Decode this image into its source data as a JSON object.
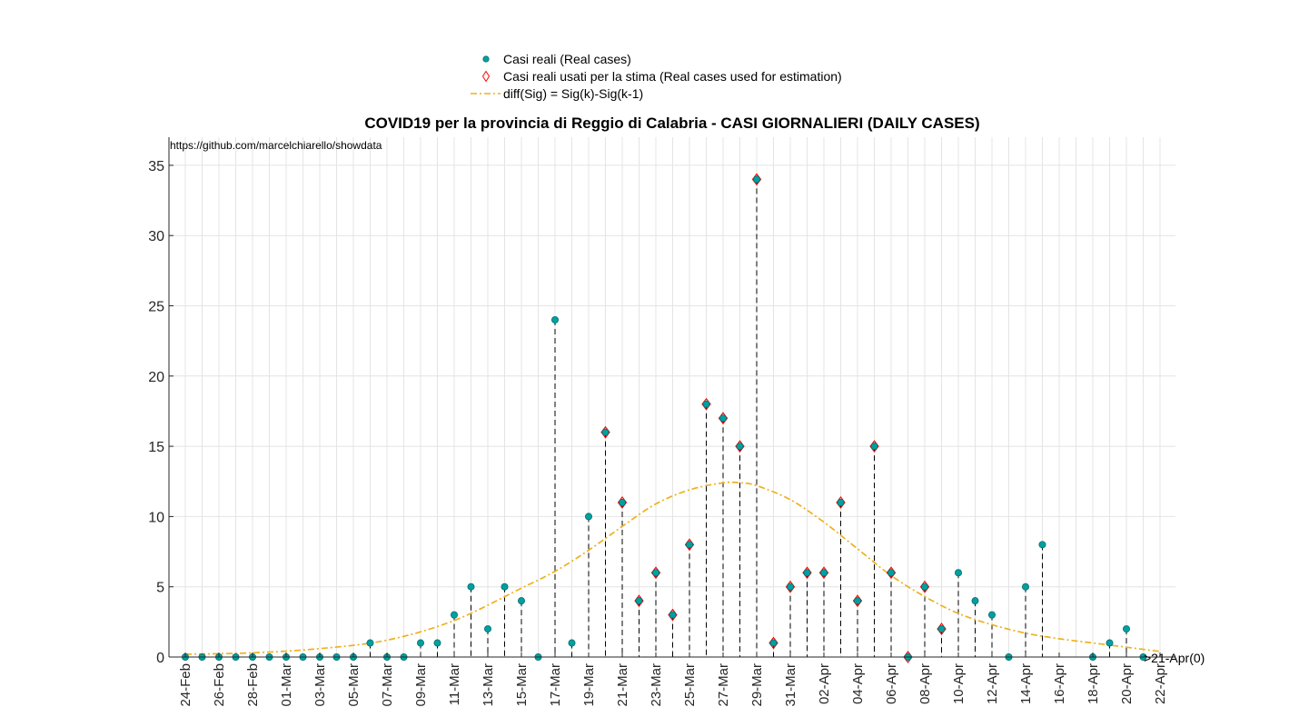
{
  "chart_data": {
    "type": "scatter",
    "title": "COVID19 per la provincia di Reggio di Calabria - CASI GIORNALIERI (DAILY CASES)",
    "source_note": "https://github.com/marcelchiarello/showdata",
    "end_annotation": ">21-Apr(0)",
    "xlabel": "",
    "ylabel": "",
    "ylim": [
      0,
      37
    ],
    "yticks": [
      0,
      5,
      10,
      15,
      20,
      25,
      30,
      35
    ],
    "grid": true,
    "legend_position": "top-center",
    "x": [
      "24-Feb",
      "25-Feb",
      "26-Feb",
      "27-Feb",
      "28-Feb",
      "29-Feb",
      "01-Mar",
      "02-Mar",
      "03-Mar",
      "04-Mar",
      "05-Mar",
      "06-Mar",
      "07-Mar",
      "08-Mar",
      "09-Mar",
      "10-Mar",
      "11-Mar",
      "12-Mar",
      "13-Mar",
      "14-Mar",
      "15-Mar",
      "16-Mar",
      "17-Mar",
      "18-Mar",
      "19-Mar",
      "20-Mar",
      "21-Mar",
      "22-Mar",
      "23-Mar",
      "24-Mar",
      "25-Mar",
      "26-Mar",
      "27-Mar",
      "28-Mar",
      "29-Mar",
      "30-Mar",
      "31-Mar",
      "01-Apr",
      "02-Apr",
      "03-Apr",
      "04-Apr",
      "05-Apr",
      "06-Apr",
      "07-Apr",
      "08-Apr",
      "09-Apr",
      "10-Apr",
      "11-Apr",
      "12-Apr",
      "13-Apr",
      "14-Apr",
      "15-Apr",
      "16-Apr",
      "17-Apr",
      "18-Apr",
      "19-Apr",
      "20-Apr",
      "21-Apr",
      "22-Apr"
    ],
    "xtick_labels": [
      "24-Feb",
      "26-Feb",
      "28-Feb",
      "01-Mar",
      "03-Mar",
      "05-Mar",
      "07-Mar",
      "09-Mar",
      "11-Mar",
      "13-Mar",
      "15-Mar",
      "17-Mar",
      "19-Mar",
      "21-Mar",
      "23-Mar",
      "25-Mar",
      "27-Mar",
      "29-Mar",
      "31-Mar",
      "02-Apr",
      "04-Apr",
      "06-Apr",
      "08-Apr",
      "10-Apr",
      "12-Apr",
      "14-Apr",
      "16-Apr",
      "18-Apr",
      "20-Apr",
      "22-Apr"
    ],
    "series": [
      {
        "name": "Casi reali (Real cases)",
        "marker": "circle",
        "color": "#00a0a0",
        "x": [
          "24-Feb",
          "25-Feb",
          "26-Feb",
          "27-Feb",
          "28-Feb",
          "29-Feb",
          "01-Mar",
          "02-Mar",
          "03-Mar",
          "04-Mar",
          "05-Mar",
          "06-Mar",
          "07-Mar",
          "08-Mar",
          "09-Mar",
          "10-Mar",
          "11-Mar",
          "12-Mar",
          "13-Mar",
          "14-Mar",
          "15-Mar",
          "16-Mar",
          "17-Mar",
          "18-Mar",
          "19-Mar",
          "20-Mar",
          "21-Mar",
          "22-Mar",
          "23-Mar",
          "24-Mar",
          "25-Mar",
          "26-Mar",
          "27-Mar",
          "28-Mar",
          "29-Mar",
          "30-Mar",
          "31-Mar",
          "01-Apr",
          "02-Apr",
          "03-Apr",
          "04-Apr",
          "05-Apr",
          "06-Apr",
          "07-Apr",
          "08-Apr",
          "09-Apr",
          "10-Apr",
          "11-Apr",
          "12-Apr",
          "13-Apr",
          "14-Apr",
          "15-Apr",
          "18-Apr",
          "19-Apr",
          "20-Apr",
          "21-Apr"
        ],
        "values": [
          0,
          0,
          0,
          0,
          0,
          0,
          0,
          0,
          0,
          0,
          0,
          1,
          0,
          0,
          1,
          1,
          3,
          5,
          2,
          5,
          4,
          0,
          24,
          1,
          10,
          16,
          11,
          4,
          6,
          3,
          8,
          18,
          17,
          15,
          34,
          1,
          5,
          6,
          6,
          11,
          4,
          15,
          6,
          0,
          5,
          2,
          6,
          4,
          3,
          0,
          5,
          8,
          0,
          1,
          2,
          0
        ]
      },
      {
        "name": "Casi reali usati per la stima (Real cases used for estimation)",
        "marker": "diamond",
        "color": "#ff0000",
        "x": [
          "20-Mar",
          "21-Mar",
          "22-Mar",
          "23-Mar",
          "24-Mar",
          "25-Mar",
          "26-Mar",
          "27-Mar",
          "28-Mar",
          "29-Mar",
          "30-Mar",
          "31-Mar",
          "01-Apr",
          "02-Apr",
          "03-Apr",
          "04-Apr",
          "05-Apr",
          "06-Apr",
          "07-Apr",
          "08-Apr",
          "09-Apr"
        ],
        "values": [
          16,
          11,
          4,
          6,
          3,
          8,
          18,
          17,
          15,
          34,
          1,
          5,
          6,
          6,
          11,
          4,
          15,
          6,
          0,
          5,
          2
        ]
      },
      {
        "name": "diff(Sig) = Sig(k)-Sig(k-1)",
        "type": "line",
        "style": "dash-dot",
        "color": "#edb120",
        "x": [
          "24-Feb",
          "28-Feb",
          "03-Mar",
          "07-Mar",
          "11-Mar",
          "15-Mar",
          "17-Mar",
          "19-Mar",
          "21-Mar",
          "23-Mar",
          "25-Mar",
          "27-Mar",
          "28-Mar",
          "29-Mar",
          "31-Mar",
          "02-Apr",
          "04-Apr",
          "06-Apr",
          "08-Apr",
          "10-Apr",
          "12-Apr",
          "14-Apr",
          "16-Apr",
          "18-Apr",
          "20-Apr",
          "22-Apr"
        ],
        "values": [
          0.2,
          0.3,
          0.6,
          1.2,
          2.6,
          4.9,
          6.1,
          7.6,
          9.3,
          10.9,
          11.9,
          12.4,
          12.4,
          12.2,
          11.2,
          9.6,
          7.7,
          5.8,
          4.3,
          3.1,
          2.3,
          1.7,
          1.3,
          1.0,
          0.7,
          0.4
        ]
      }
    ]
  }
}
